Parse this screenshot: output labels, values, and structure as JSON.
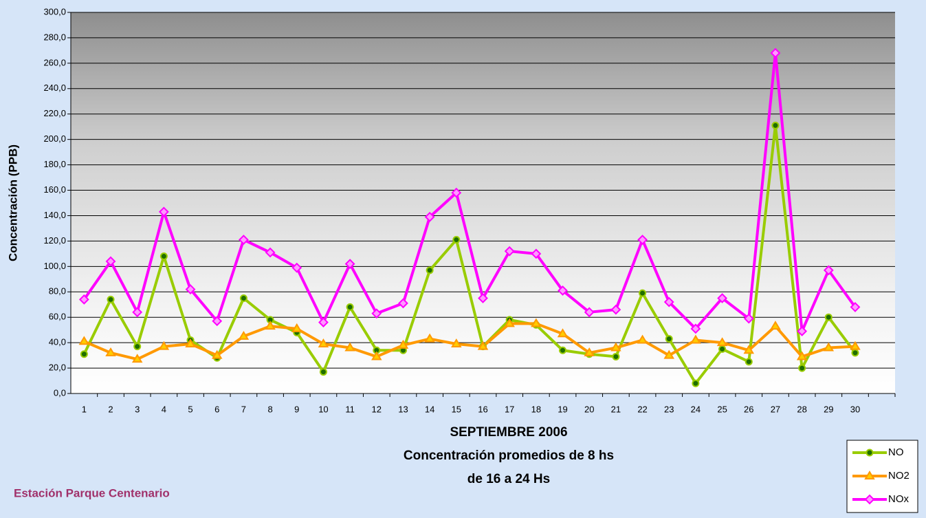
{
  "chart_data": {
    "type": "line",
    "xlabel": [
      "SEPTIEMBRE 2006",
      "Concentración promedios de 8 hs",
      "de 16 a 24 Hs"
    ],
    "ylabel": "Concentración  (PPB)",
    "annotations": [
      "Estación Parque Centenario"
    ],
    "categories": [
      "1",
      "2",
      "3",
      "4",
      "5",
      "6",
      "7",
      "8",
      "9",
      "10",
      "11",
      "12",
      "13",
      "14",
      "15",
      "16",
      "17",
      "18",
      "19",
      "20",
      "21",
      "22",
      "23",
      "24",
      "25",
      "26",
      "27",
      "28",
      "29",
      "30",
      null
    ],
    "series": [
      {
        "name": "NO",
        "color": "#99cc00",
        "marker": "circle",
        "marker_fill": "#1f6e00",
        "values": [
          31,
          74,
          37,
          108,
          42,
          28,
          75,
          58,
          48,
          17,
          68,
          34,
          34,
          97,
          121,
          37,
          58,
          54,
          34,
          31,
          29,
          79,
          43,
          8,
          35,
          25,
          211,
          20,
          60,
          32,
          null
        ]
      },
      {
        "name": "NO2",
        "color": "#ff9900",
        "marker": "triangle",
        "marker_fill": "#ffcc00",
        "values": [
          41,
          32,
          27,
          37,
          39,
          30,
          45,
          53,
          51,
          39,
          36,
          29,
          38,
          43,
          39,
          37,
          55,
          55,
          47,
          32,
          36,
          42,
          30,
          42,
          40,
          34,
          53,
          29,
          36,
          37,
          null
        ]
      },
      {
        "name": "NOx",
        "color": "#ff00ff",
        "marker": "diamond",
        "marker_fill": "#ff99ff",
        "values": [
          74,
          104,
          64,
          143,
          82,
          57,
          121,
          111,
          99,
          56,
          102,
          63,
          71,
          139,
          158,
          75,
          112,
          110,
          81,
          64,
          66,
          121,
          72,
          51,
          75,
          59,
          268,
          49,
          97,
          68,
          null
        ]
      }
    ],
    "ylim": [
      0,
      300
    ],
    "yticks": [
      {
        "value": 0,
        "label": "0,0"
      },
      {
        "value": 20,
        "label": "20,0"
      },
      {
        "value": 40,
        "label": "40,0"
      },
      {
        "value": 60,
        "label": "60,0"
      },
      {
        "value": 80,
        "label": "80,0"
      },
      {
        "value": 100,
        "label": "100,0"
      },
      {
        "value": 120,
        "label": "120,0"
      },
      {
        "value": 140,
        "label": "140,0"
      },
      {
        "value": 160,
        "label": "160,0"
      },
      {
        "value": 180,
        "label": "180,0"
      },
      {
        "value": 200,
        "label": "200,0"
      },
      {
        "value": 220,
        "label": "220,0"
      },
      {
        "value": 240,
        "label": "240,0"
      },
      {
        "value": 260,
        "label": "260,0"
      },
      {
        "value": 280,
        "label": "280,0"
      },
      {
        "value": 300,
        "label": "300,0"
      }
    ],
    "grid": true,
    "legend": "bottom-right"
  }
}
